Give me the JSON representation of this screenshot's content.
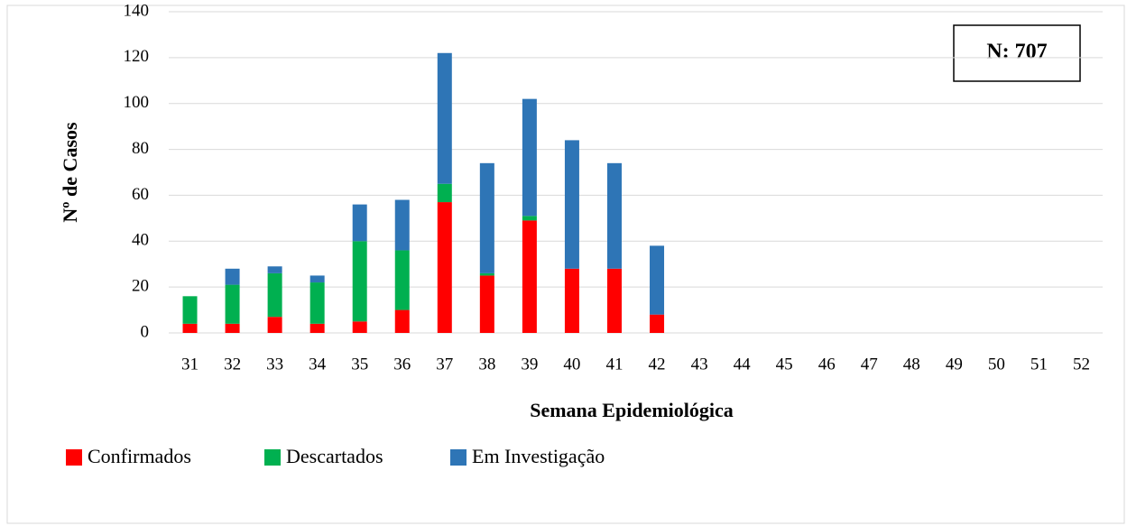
{
  "chart_data": {
    "type": "stacked_bar",
    "x_label": "Semana Epidemiológica",
    "y_label": "Nº de Casos",
    "annotation": "N: 707",
    "categories": [
      "31",
      "32",
      "33",
      "34",
      "35",
      "36",
      "37",
      "38",
      "39",
      "40",
      "41",
      "42",
      "43",
      "44",
      "45",
      "46",
      "47",
      "48",
      "49",
      "50",
      "51",
      "52"
    ],
    "series": [
      {
        "name": "Confirmados",
        "color": "#ff0000",
        "values": [
          4,
          4,
          7,
          4,
          5,
          10,
          57,
          25,
          49,
          28,
          28,
          8,
          0,
          0,
          0,
          0,
          0,
          0,
          0,
          0,
          0,
          0
        ]
      },
      {
        "name": "Descartados",
        "color": "#00b050",
        "values": [
          12,
          17,
          19,
          18,
          35,
          26,
          8,
          1,
          2,
          0,
          0,
          0,
          0,
          0,
          0,
          0,
          0,
          0,
          0,
          0,
          0,
          0
        ]
      },
      {
        "name": "Em Investigação",
        "color": "#2e75b6",
        "values": [
          0,
          7,
          3,
          3,
          16,
          22,
          57,
          48,
          51,
          56,
          46,
          30,
          0,
          0,
          0,
          0,
          0,
          0,
          0,
          0,
          0,
          0
        ]
      }
    ],
    "ylim": [
      0,
      140
    ],
    "yticks": [
      0,
      20,
      40,
      60,
      80,
      100,
      120,
      140
    ],
    "grid": true,
    "legend": "bottom-left"
  }
}
